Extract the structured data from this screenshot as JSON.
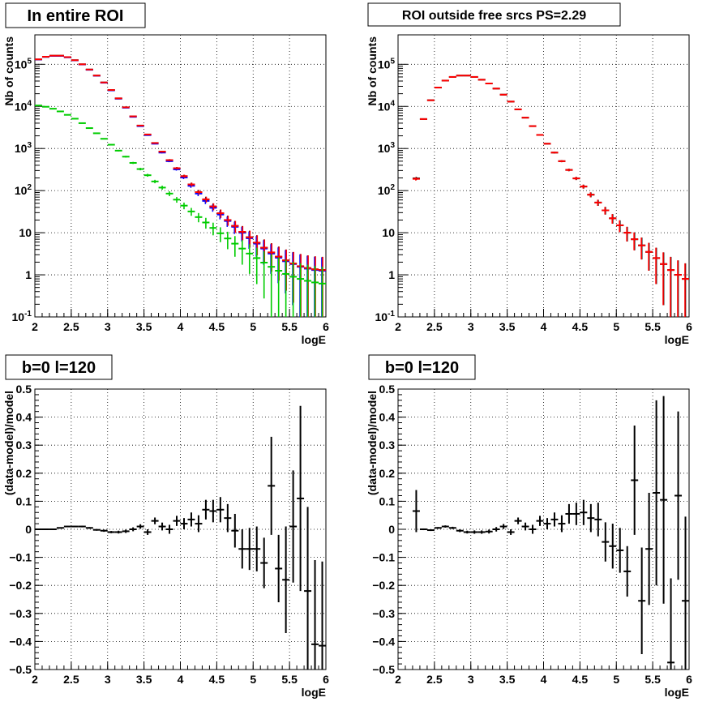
{
  "chart_data": [
    {
      "type": "scatter",
      "title": "In entire ROI",
      "xlabel": "logE",
      "ylabel": "Nb of counts",
      "xlim": [
        2,
        6
      ],
      "ylim": [
        0.1,
        500000
      ],
      "yscale": "log",
      "grid": true,
      "x_ticks": [
        "2",
        "2.5",
        "3",
        "3.5",
        "4",
        "4.5",
        "5",
        "5.5",
        "6"
      ],
      "y_ticks": [
        {
          "value": 0.1,
          "base": "10",
          "exp": "-1"
        },
        {
          "value": 1,
          "base": "1",
          "exp": ""
        },
        {
          "value": 10,
          "base": "10",
          "exp": ""
        },
        {
          "value": 100,
          "base": "10",
          "exp": "2"
        },
        {
          "value": 1000,
          "base": "10",
          "exp": "3"
        },
        {
          "value": 10000,
          "base": "10",
          "exp": "4"
        },
        {
          "value": 100000,
          "base": "10",
          "exp": "5"
        }
      ],
      "x": [
        2.05,
        2.15,
        2.25,
        2.35,
        2.45,
        2.55,
        2.65,
        2.75,
        2.85,
        2.95,
        3.05,
        3.15,
        3.25,
        3.35,
        3.45,
        3.55,
        3.65,
        3.75,
        3.85,
        3.95,
        4.05,
        4.15,
        4.25,
        4.35,
        4.45,
        4.55,
        4.65,
        4.75,
        4.85,
        4.95,
        5.05,
        5.15,
        5.25,
        5.35,
        5.45,
        5.55,
        5.65,
        5.75,
        5.85,
        5.95
      ],
      "series": [
        {
          "color": "#000000",
          "values": [
            130000,
            150000,
            160000,
            160000,
            148000,
            125000,
            100000,
            75000,
            54000,
            37000,
            24500,
            15500,
            9500,
            5800,
            3500,
            2150,
            1350,
            840,
            530,
            340,
            220,
            140,
            92,
            62,
            42,
            29,
            20,
            14.5,
            10.5,
            7.8,
            5.8,
            4.4,
            3.4,
            2.7,
            2.2,
            1.85,
            1.6,
            1.45,
            1.35,
            1.3
          ]
        },
        {
          "color": "#0000ff",
          "values": [
            130000,
            150000,
            158000,
            158000,
            146000,
            124000,
            99000,
            74000,
            53500,
            36500,
            24000,
            15200,
            9300,
            5650,
            3400,
            2080,
            1300,
            800,
            500,
            320,
            205,
            130,
            85,
            57,
            39,
            27,
            19,
            13.8,
            10,
            7.4,
            5.5,
            4.2,
            3.2,
            2.55,
            2.1,
            1.8,
            1.55,
            1.4,
            1.3,
            1.25
          ]
        },
        {
          "color": "#ff0000",
          "values": [
            131000,
            151000,
            160000,
            160000,
            148000,
            125000,
            100000,
            75000,
            54000,
            37000,
            24500,
            15500,
            9500,
            5800,
            3500,
            2150,
            1350,
            840,
            530,
            340,
            220,
            140,
            92,
            62,
            42,
            29,
            20,
            14.5,
            10.5,
            7.8,
            5.8,
            4.4,
            3.4,
            2.7,
            2.2,
            1.85,
            1.6,
            1.45,
            1.35,
            1.3
          ]
        },
        {
          "color": "#00cc00",
          "values": [
            10500,
            9800,
            8800,
            7600,
            6300,
            5100,
            4000,
            3050,
            2300,
            1700,
            1230,
            890,
            640,
            455,
            325,
            232,
            165,
            118,
            85,
            61,
            44,
            32,
            23.5,
            17.5,
            13,
            9.7,
            7.3,
            5.5,
            4.2,
            3.2,
            2.5,
            1.95,
            1.55,
            1.25,
            1.05,
            0.9,
            0.8,
            0.72,
            0.66,
            0.62
          ]
        }
      ]
    },
    {
      "type": "scatter",
      "title": "ROI outside free srcs PS=2.29",
      "xlabel": "logE",
      "ylabel": "Nb of counts",
      "xlim": [
        2,
        6
      ],
      "ylim": [
        0.1,
        500000
      ],
      "yscale": "log",
      "grid": true,
      "x_ticks": [
        "2",
        "2.5",
        "3",
        "3.5",
        "4",
        "4.5",
        "5",
        "5.5",
        "6"
      ],
      "y_ticks": [
        {
          "value": 0.1,
          "base": "10",
          "exp": "-1"
        },
        {
          "value": 1,
          "base": "1",
          "exp": ""
        },
        {
          "value": 10,
          "base": "10",
          "exp": ""
        },
        {
          "value": 100,
          "base": "10",
          "exp": "2"
        },
        {
          "value": 1000,
          "base": "10",
          "exp": "3"
        },
        {
          "value": 10000,
          "base": "10",
          "exp": "4"
        },
        {
          "value": 100000,
          "base": "10",
          "exp": "5"
        }
      ],
      "x": [
        2.25,
        2.35,
        2.45,
        2.55,
        2.65,
        2.75,
        2.85,
        2.95,
        3.05,
        3.15,
        3.25,
        3.35,
        3.45,
        3.55,
        3.65,
        3.75,
        3.85,
        3.95,
        4.05,
        4.15,
        4.25,
        4.35,
        4.45,
        4.55,
        4.65,
        4.75,
        4.85,
        4.95,
        5.05,
        5.15,
        5.25,
        5.35,
        5.45,
        5.55,
        5.65,
        5.75,
        5.85,
        5.95
      ],
      "series": [
        {
          "color": "#000000",
          "values": [
            195,
            5000,
            14000,
            28000,
            41000,
            50000,
            54000,
            54000,
            50000,
            43000,
            35000,
            26500,
            19000,
            13000,
            8500,
            5400,
            3400,
            2100,
            1300,
            800,
            500,
            310,
            195,
            125,
            80,
            52,
            34,
            22,
            15,
            10,
            7,
            5,
            3.5,
            2.5,
            1.8,
            1.3,
            1.0,
            0.8
          ]
        },
        {
          "color": "#ff0000",
          "values": [
            190,
            5000,
            14000,
            28000,
            41000,
            50000,
            54000,
            54000,
            50000,
            43000,
            35000,
            26500,
            19000,
            13000,
            8500,
            5400,
            3400,
            2100,
            1300,
            800,
            500,
            310,
            195,
            125,
            80,
            52,
            34,
            22,
            15,
            10,
            7,
            5,
            3.5,
            2.5,
            1.8,
            1.3,
            1.0,
            0.8
          ]
        }
      ]
    },
    {
      "type": "scatter",
      "title": "b=0 l=120",
      "xlabel": "logE",
      "ylabel": "(data-model)/model",
      "xlim": [
        2,
        6
      ],
      "ylim": [
        -0.5,
        0.5
      ],
      "grid": true,
      "x_ticks": [
        "2",
        "2.5",
        "3",
        "3.5",
        "4",
        "4.5",
        "5",
        "5.5",
        "6"
      ],
      "y_ticks": [
        "−0.5",
        "−0.4",
        "−0.3",
        "−0.2",
        "−0.1",
        "0",
        "0.1",
        "0.2",
        "0.3",
        "0.4",
        "0.5"
      ],
      "x": [
        2.05,
        2.15,
        2.25,
        2.35,
        2.45,
        2.55,
        2.65,
        2.75,
        2.85,
        2.95,
        3.05,
        3.15,
        3.25,
        3.35,
        3.45,
        3.55,
        3.65,
        3.75,
        3.85,
        3.95,
        4.05,
        4.15,
        4.25,
        4.35,
        4.45,
        4.55,
        4.65,
        4.75,
        4.85,
        4.95,
        5.05,
        5.15,
        5.25,
        5.35,
        5.45,
        5.55,
        5.65,
        5.75,
        5.85,
        5.95
      ],
      "series": [
        {
          "color": "#000000",
          "values": [
            0.0,
            0.0,
            0.0,
            0.005,
            0.01,
            0.01,
            0.01,
            0.005,
            -0.002,
            -0.005,
            -0.01,
            -0.01,
            -0.007,
            0.0,
            0.01,
            -0.01,
            0.03,
            0.01,
            0.0,
            0.03,
            0.02,
            0.035,
            0.02,
            0.07,
            0.065,
            0.07,
            0.04,
            -0.005,
            -0.07,
            -0.07,
            -0.07,
            -0.12,
            0.155,
            -0.14,
            -0.18,
            0.01,
            0.11,
            -0.22,
            -0.41,
            -0.415
          ],
          "errors": [
            0.002,
            0.002,
            0.002,
            0.002,
            0.002,
            0.002,
            0.003,
            0.003,
            0.003,
            0.004,
            0.004,
            0.005,
            0.006,
            0.007,
            0.008,
            0.01,
            0.012,
            0.014,
            0.016,
            0.018,
            0.02,
            0.025,
            0.03,
            0.035,
            0.04,
            0.045,
            0.05,
            0.06,
            0.07,
            0.075,
            0.08,
            0.09,
            0.175,
            0.12,
            0.19,
            0.2,
            0.33,
            0.3,
            0.3,
            0.3
          ]
        }
      ]
    },
    {
      "type": "scatter",
      "title": "b=0 l=120",
      "xlabel": "logE",
      "ylabel": "(data-model)/model",
      "xlim": [
        2,
        6
      ],
      "ylim": [
        -0.5,
        0.5
      ],
      "grid": true,
      "x_ticks": [
        "2",
        "2.5",
        "3",
        "3.5",
        "4",
        "4.5",
        "5",
        "5.5",
        "6"
      ],
      "y_ticks": [
        "−0.5",
        "−0.4",
        "−0.3",
        "−0.2",
        "−0.1",
        "0",
        "0.1",
        "0.2",
        "0.3",
        "0.4",
        "0.5"
      ],
      "x": [
        2.25,
        2.35,
        2.45,
        2.55,
        2.65,
        2.75,
        2.85,
        2.95,
        3.05,
        3.15,
        3.25,
        3.35,
        3.45,
        3.55,
        3.65,
        3.75,
        3.85,
        3.95,
        4.05,
        4.15,
        4.25,
        4.35,
        4.45,
        4.55,
        4.65,
        4.75,
        4.85,
        4.95,
        5.05,
        5.15,
        5.25,
        5.35,
        5.45,
        5.55,
        5.65,
        5.75,
        5.85,
        5.95
      ],
      "series": [
        {
          "color": "#000000",
          "values": [
            0.065,
            0.0,
            -0.003,
            0.005,
            0.01,
            0.005,
            -0.005,
            -0.01,
            -0.01,
            -0.01,
            -0.008,
            0.0,
            0.01,
            -0.01,
            0.03,
            0.01,
            0.0,
            0.03,
            0.02,
            0.035,
            0.02,
            0.055,
            0.055,
            0.06,
            0.04,
            0.035,
            -0.045,
            -0.06,
            -0.075,
            -0.15,
            0.175,
            -0.255,
            -0.07,
            0.13,
            0.105,
            -0.475,
            0.12,
            -0.255
          ],
          "errors": [
            0.075,
            0.003,
            0.003,
            0.003,
            0.004,
            0.004,
            0.005,
            0.005,
            0.006,
            0.006,
            0.007,
            0.008,
            0.009,
            0.01,
            0.012,
            0.014,
            0.016,
            0.018,
            0.02,
            0.025,
            0.03,
            0.035,
            0.04,
            0.045,
            0.05,
            0.06,
            0.07,
            0.08,
            0.08,
            0.09,
            0.195,
            0.19,
            0.2,
            0.33,
            0.37,
            0.3,
            0.3,
            0.3
          ]
        }
      ]
    }
  ]
}
